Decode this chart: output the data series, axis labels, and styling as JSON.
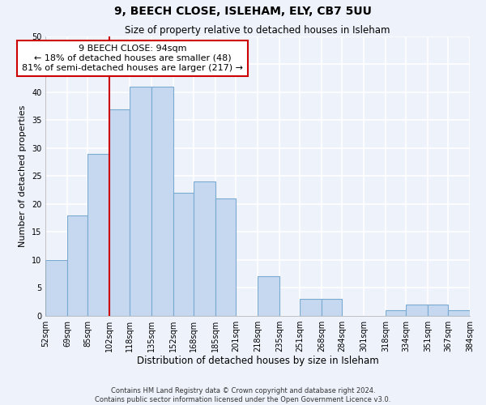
{
  "title": "9, BEECH CLOSE, ISLEHAM, ELY, CB7 5UU",
  "subtitle": "Size of property relative to detached houses in Isleham",
  "xlabel": "Distribution of detached houses by size in Isleham",
  "ylabel": "Number of detached properties",
  "bar_color": "#c5d8f0",
  "bar_edge_color": "#7aaad0",
  "background_color": "#eef2fb",
  "grid_color": "#ffffff",
  "bin_edges": [
    52,
    69,
    85,
    102,
    118,
    135,
    152,
    168,
    185,
    201,
    218,
    235,
    251,
    268,
    284,
    301,
    318,
    334,
    351,
    367,
    384
  ],
  "bin_labels": [
    "52sqm",
    "69sqm",
    "85sqm",
    "102sqm",
    "118sqm",
    "135sqm",
    "152sqm",
    "168sqm",
    "185sqm",
    "201sqm",
    "218sqm",
    "235sqm",
    "251sqm",
    "268sqm",
    "284sqm",
    "301sqm",
    "318sqm",
    "334sqm",
    "351sqm",
    "367sqm",
    "384sqm"
  ],
  "counts": [
    10,
    18,
    29,
    37,
    41,
    41,
    22,
    24,
    21,
    0,
    7,
    0,
    3,
    3,
    0,
    0,
    1,
    2,
    2,
    1
  ],
  "ylim": [
    0,
    50
  ],
  "yticks": [
    0,
    5,
    10,
    15,
    20,
    25,
    30,
    35,
    40,
    45,
    50
  ],
  "property_line_x": 102,
  "property_line_color": "#cc0000",
  "annotation_title": "9 BEECH CLOSE: 94sqm",
  "annotation_line1": "← 18% of detached houses are smaller (48)",
  "annotation_line2": "81% of semi-detached houses are larger (217) →",
  "annotation_box_color": "#ffffff",
  "annotation_box_edge_color": "#cc0000",
  "footnote1": "Contains HM Land Registry data © Crown copyright and database right 2024.",
  "footnote2": "Contains public sector information licensed under the Open Government Licence v3.0."
}
